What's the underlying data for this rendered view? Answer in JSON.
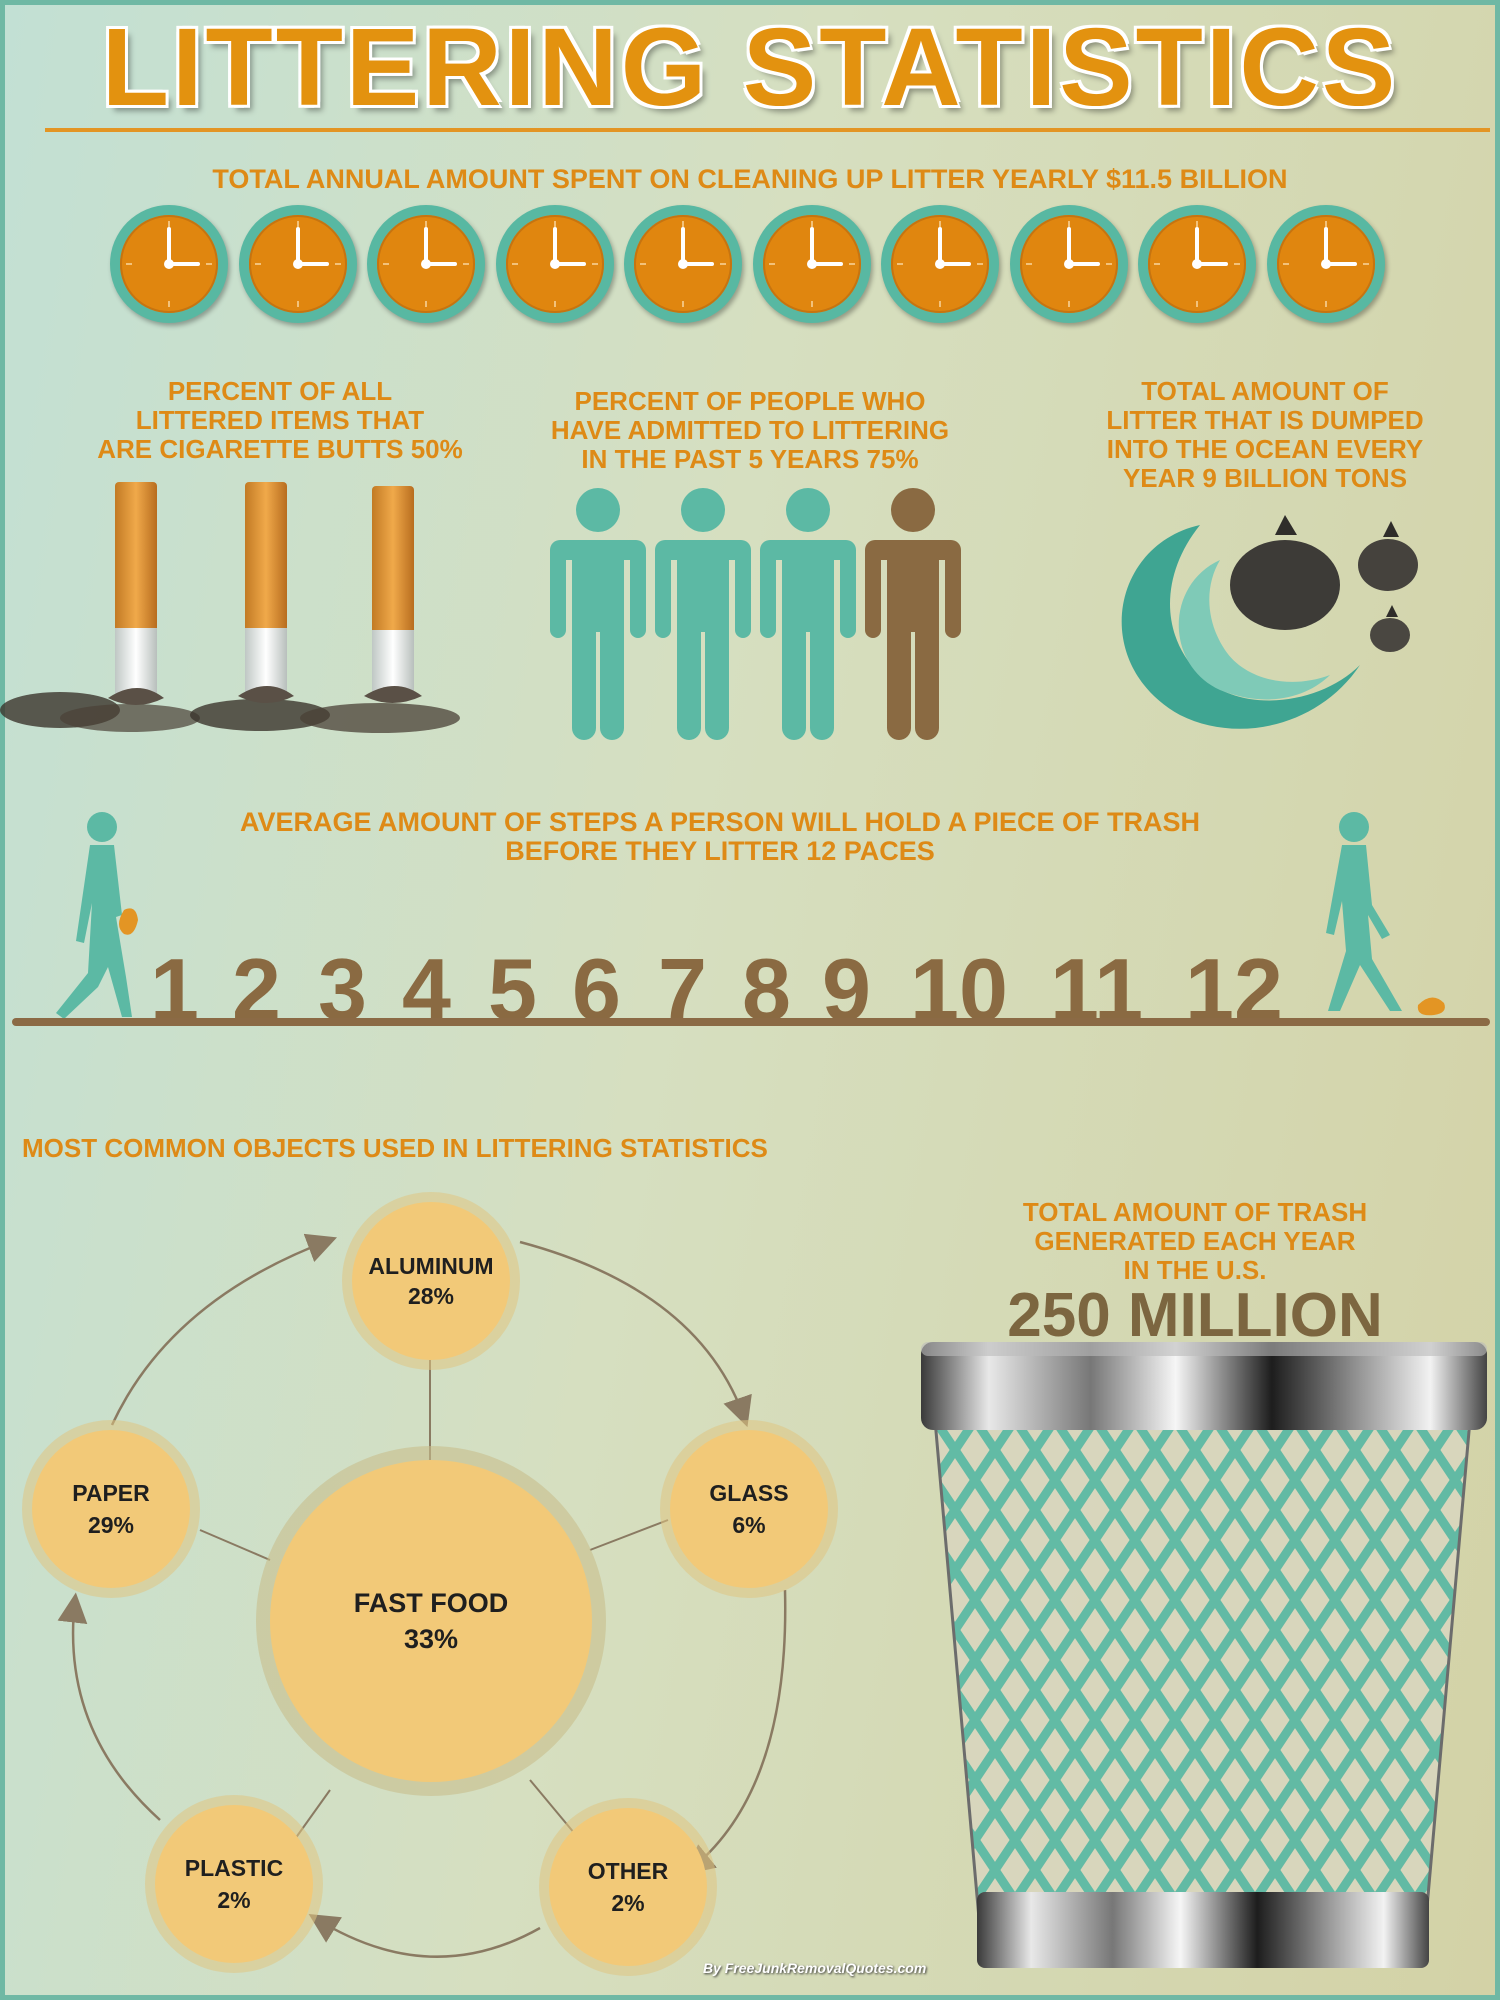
{
  "title": "LITTERING STATISTICS",
  "cleanup_stat": "TOTAL ANNUAL AMOUNT SPENT ON CLEANING UP LITTER YEARLY $11.5 BILLION",
  "cigarette_stat": [
    "PERCENT OF ALL",
    "LITTERED ITEMS THAT",
    "ARE CIGARETTE BUTTS 50%"
  ],
  "people_stat": [
    "PERCENT OF PEOPLE WHO",
    "HAVE ADMITTED TO LITTERING",
    "IN THE PAST 5 YEARS 75%"
  ],
  "ocean_stat": [
    "TOTAL AMOUNT OF",
    "LITTER THAT IS DUMPED",
    "INTO THE OCEAN EVERY",
    "YEAR 9 BILLION TONS"
  ],
  "steps_stat": [
    "AVERAGE AMOUNT OF STEPS A PERSON WILL HOLD A PIECE OF TRASH",
    "BEFORE THEY LITTER 12 PACES"
  ],
  "steps": [
    "1",
    "2",
    "3",
    "4",
    "5",
    "6",
    "7",
    "8",
    "9",
    "10",
    "11",
    "12"
  ],
  "objects_heading": "MOST COMMON OBJECTS USED IN LITTERING STATISTICS",
  "objects": {
    "aluminum": {
      "name": "ALUMINUM",
      "pct": "28%"
    },
    "glass": {
      "name": "GLASS",
      "pct": "6%"
    },
    "other": {
      "name": "OTHER",
      "pct": "2%"
    },
    "plastic": {
      "name": "PLASTIC",
      "pct": "2%"
    },
    "paper": {
      "name": "PAPER",
      "pct": "29%"
    },
    "fast_food": {
      "name": "FAST FOOD",
      "pct": "33%"
    }
  },
  "trash_stat": [
    "TOTAL AMOUNT OF TRASH",
    "GENERATED EACH YEAR",
    "IN THE U.S."
  ],
  "trash_amount": "250 MILLION",
  "credit": "By FreeJunkRemovalQuotes.com",
  "colors": {
    "orange": "#de8a16",
    "teal": "#5cb9a4",
    "brown": "#8a6a42",
    "bubble": "#f2c978"
  }
}
